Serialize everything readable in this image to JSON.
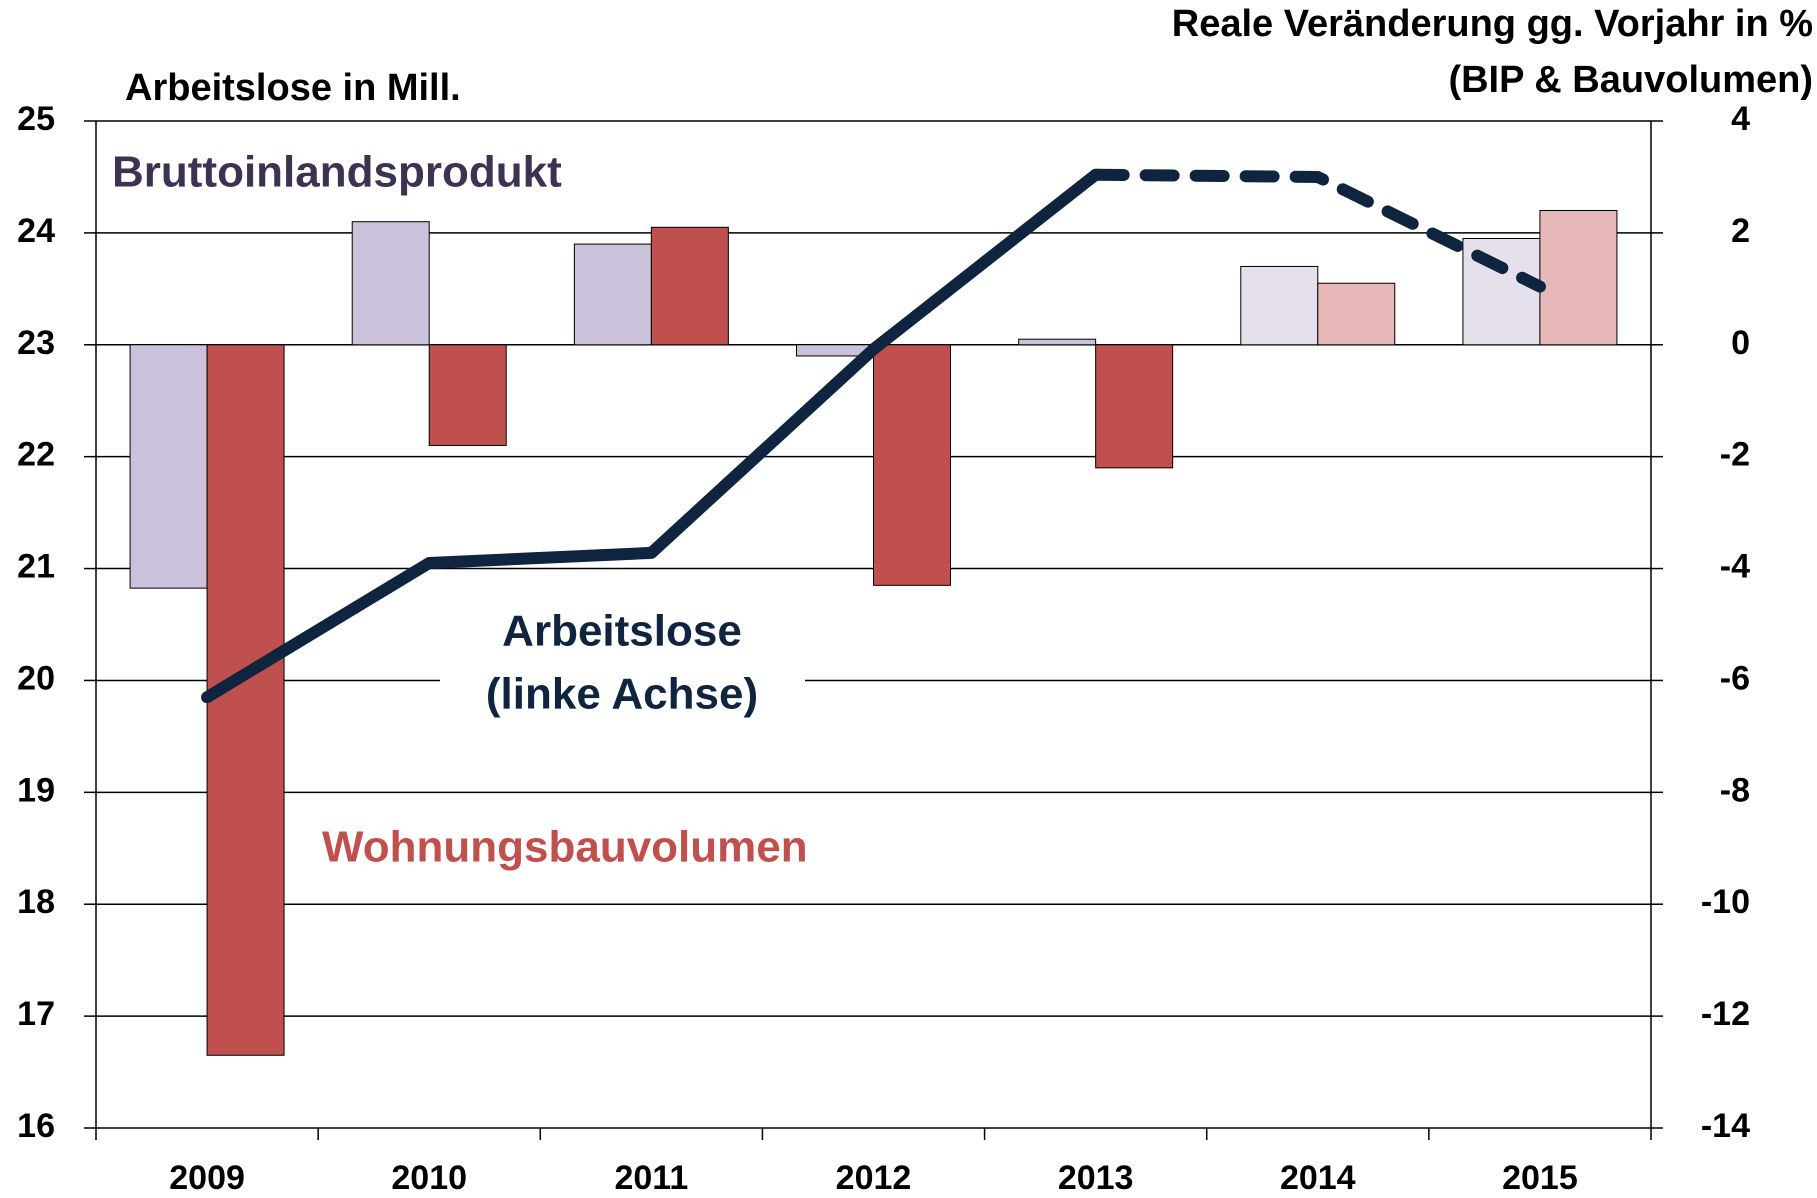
{
  "chart_data": {
    "type": "bar-line",
    "y_label": "Arbeitslose in Mill.",
    "y2_label": [
      "Reale Veränderung gg. Vorjahr in %",
      "(BIP & Bauvolumen)"
    ],
    "categories": [
      "2009",
      "2010",
      "2011",
      "2012",
      "2013",
      "2014",
      "2015"
    ],
    "ylim": [
      16,
      25
    ],
    "yticks": [
      16,
      17,
      18,
      19,
      20,
      21,
      22,
      23,
      24,
      25
    ],
    "y2lim": [
      -14,
      4
    ],
    "y2ticks": [
      -14,
      -12,
      -10,
      -8,
      -6,
      -4,
      -2,
      0,
      2,
      4
    ],
    "grid": true,
    "series": [
      {
        "name": "Bruttoinlandsprodukt",
        "kind": "bar",
        "axis": "y2",
        "label_color": "#3f3151",
        "colors": [
          "#ccc1da",
          "#ccc1da",
          "#ccc1da",
          "#ccc1da",
          "#ccc1da",
          "#e6e0ec",
          "#e6e0ec"
        ],
        "values": [
          -4.35,
          2.2,
          1.8,
          -0.2,
          0.1,
          1.4,
          1.9
        ]
      },
      {
        "name": "Wohnungsbauvolumen",
        "kind": "bar",
        "axis": "y2",
        "label_color": "#c0504d",
        "colors": [
          "#c0504d",
          "#c0504d",
          "#c0504d",
          "#c0504d",
          "#c0504d",
          "#e6b9b8",
          "#e6b9b8"
        ],
        "values": [
          -12.7,
          -1.8,
          2.1,
          -4.3,
          -2.2,
          1.1,
          2.4
        ]
      },
      {
        "name": [
          "Arbeitslose",
          "(linke Achse)"
        ],
        "kind": "line",
        "axis": "y",
        "color": "#0f243e",
        "label_color": "#0f243e",
        "dash_from": 4,
        "values": [
          19.85,
          21.05,
          21.14,
          22.96,
          24.52,
          24.5,
          23.52
        ]
      }
    ]
  }
}
